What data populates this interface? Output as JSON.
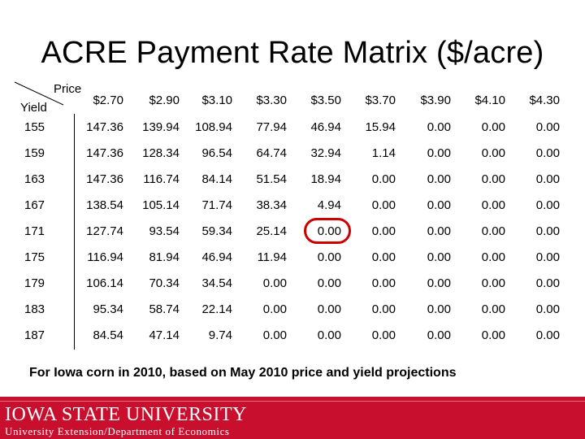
{
  "title": "ACRE Payment Rate Matrix ($/acre)",
  "header": {
    "price_label": "Price",
    "yield_label": "Yield"
  },
  "prices": [
    "$2.70",
    "$2.90",
    "$3.10",
    "$3.30",
    "$3.50",
    "$3.70",
    "$3.90",
    "$4.10",
    "$4.30"
  ],
  "rows": [
    {
      "yield": "155",
      "values": [
        "147.36",
        "139.94",
        "108.94",
        "77.94",
        "46.94",
        "15.94",
        "0.00",
        "0.00",
        "0.00"
      ]
    },
    {
      "yield": "159",
      "values": [
        "147.36",
        "128.34",
        "96.54",
        "64.74",
        "32.94",
        "1.14",
        "0.00",
        "0.00",
        "0.00"
      ]
    },
    {
      "yield": "163",
      "values": [
        "147.36",
        "116.74",
        "84.14",
        "51.54",
        "18.94",
        "0.00",
        "0.00",
        "0.00",
        "0.00"
      ]
    },
    {
      "yield": "167",
      "values": [
        "138.54",
        "105.14",
        "71.74",
        "38.34",
        "4.94",
        "0.00",
        "0.00",
        "0.00",
        "0.00"
      ]
    },
    {
      "yield": "171",
      "values": [
        "127.74",
        "93.54",
        "59.34",
        "25.14",
        "0.00",
        "0.00",
        "0.00",
        "0.00",
        "0.00"
      ]
    },
    {
      "yield": "175",
      "values": [
        "116.94",
        "81.94",
        "46.94",
        "11.94",
        "0.00",
        "0.00",
        "0.00",
        "0.00",
        "0.00"
      ]
    },
    {
      "yield": "179",
      "values": [
        "106.14",
        "70.34",
        "34.54",
        "0.00",
        "0.00",
        "0.00",
        "0.00",
        "0.00",
        "0.00"
      ]
    },
    {
      "yield": "183",
      "values": [
        "95.34",
        "58.74",
        "22.14",
        "0.00",
        "0.00",
        "0.00",
        "0.00",
        "0.00",
        "0.00"
      ]
    },
    {
      "yield": "187",
      "values": [
        "84.54",
        "47.14",
        "9.74",
        "0.00",
        "0.00",
        "0.00",
        "0.00",
        "0.00",
        "0.00"
      ]
    }
  ],
  "highlight": {
    "row": 4,
    "col": 4,
    "color": "#cc0000"
  },
  "footnote": "For Iowa corn in 2010, based on May 2010 price and yield projections",
  "footer": {
    "logo_text": "IOWA STATE UNIVERSITY",
    "subtitle": "University Extension/Department of Economics",
    "color": "#c8102e"
  }
}
